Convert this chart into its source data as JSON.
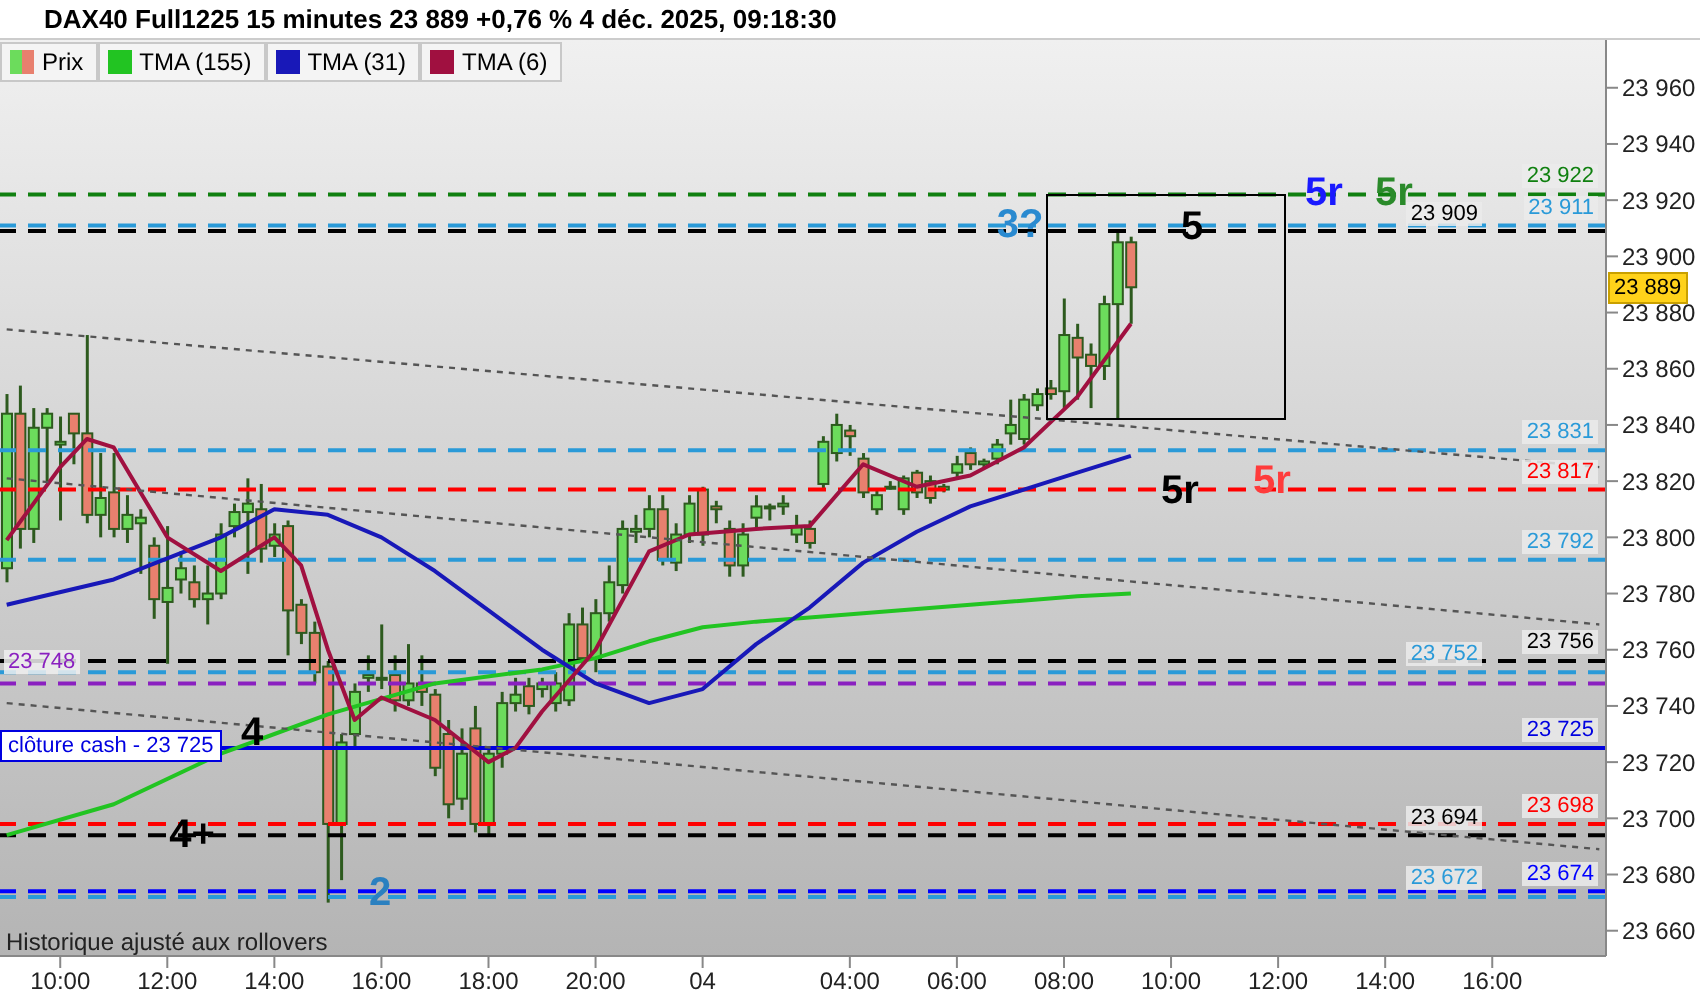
{
  "chart_data": {
    "type": "candlestick",
    "title": "DAX40 Full1225 15 minutes 23 889 +0,76 % 4 déc. 2025, 09:18:30",
    "categories": [
      null,
      null,
      null,
      null,
      "10:00",
      null,
      null,
      null,
      null,
      null,
      null,
      null,
      "12:00",
      null,
      null,
      null,
      null,
      null,
      null,
      null,
      "14:00",
      null,
      null,
      null,
      null,
      null,
      null,
      null,
      "16:00",
      null,
      null,
      null,
      null,
      null,
      null,
      null,
      "18:00",
      null,
      null,
      null,
      null,
      null,
      null,
      null,
      "20:00",
      null,
      null,
      null,
      null,
      null,
      null,
      null,
      "04",
      null,
      null,
      null,
      null,
      null,
      null,
      null,
      null,
      null,
      null,
      "04:00",
      null,
      null,
      null,
      null,
      null,
      null,
      null,
      "06:00",
      null,
      null,
      null,
      null,
      null,
      null,
      null,
      "08:00",
      null,
      null,
      null,
      null,
      null,
      null,
      null,
      "10:00",
      null,
      null,
      null,
      null,
      null,
      null,
      null,
      "12:00",
      null,
      null,
      null,
      null,
      null,
      null,
      null,
      "14:00",
      null,
      null,
      null,
      null,
      null,
      null,
      null,
      "16:00",
      null,
      null,
      null,
      null,
      null,
      null,
      null,
      null
    ],
    "series": [
      {
        "name": "Prix",
        "type": "candlestick",
        "colors": [
          "#6cdc5c",
          "#e8806e",
          "#6cdc5c",
          "#6cdc5c",
          "#6cdc5c",
          "#e8806e",
          "#e8806e",
          "#6cdc5c",
          "#e8806e",
          "#6cdc5c",
          "#6cdc5c",
          "#e8806e",
          "#6cdc5c",
          "#6cdc5c",
          "#e8806e",
          "#6cdc5c",
          "#6cdc5c",
          "#6cdc5c",
          "#6cdc5c",
          "#e8806e",
          "#6cdc5c",
          "#e8806e",
          "#e8806e",
          "#e8806e",
          "#e8806e",
          "#6cdc5c",
          "#6cdc5c",
          "#6cdc5c",
          "#6cdc5c",
          "#e8806e",
          "#6cdc5c",
          "#e8806e",
          "#e8806e",
          "#e8806e",
          "#6cdc5c",
          "#e8806e",
          "#6cdc5c",
          "#6cdc5c",
          "#6cdc5c",
          "#e8806e",
          "#6cdc5c",
          "#6cdc5c",
          "#6cdc5c",
          "#e8806e",
          "#6cdc5c",
          "#6cdc5c",
          "#6cdc5c",
          "#6cdc5c",
          "#6cdc5c",
          "#e8806e",
          "#6cdc5c",
          "#6cdc5c",
          "#e8806e",
          "#e8806e",
          "#e8806e",
          "#6cdc5c",
          "#6cdc5c",
          "#6cdc5c",
          "#6cdc5c",
          "#6cdc5c",
          "#e8806e",
          "#6cdc5c",
          "#6cdc5c",
          "#e8806e",
          "#e8806e",
          "#6cdc5c",
          "#6cdc5c",
          "#6cdc5c",
          "#e8806e",
          "#e8806e",
          "#6cdc5c",
          "#6cdc5c",
          "#e8806e",
          "#6cdc5c",
          "#6cdc5c",
          "#6cdc5c",
          "#6cdc5c",
          "#6cdc5c",
          "#e8806e",
          "#6cdc5c",
          "#e8806e",
          "#e8806e",
          "#6cdc5c",
          "#6cdc5c",
          "#e8806e",
          null,
          null,
          null,
          null,
          null,
          null,
          null,
          null,
          null,
          null,
          null,
          null,
          null,
          null,
          null,
          null,
          null,
          null,
          null,
          null,
          null,
          null,
          null,
          null,
          null,
          null,
          null,
          null,
          null,
          null,
          null,
          null,
          null,
          null,
          null
        ],
        "ohlc": [
          [
            23789,
            23851,
            23784,
            23844
          ],
          [
            23844,
            23854,
            23796,
            23803
          ],
          [
            23803,
            23846,
            23798,
            23839
          ],
          [
            23839,
            23846,
            23820,
            23844
          ],
          [
            23833,
            23843,
            23806,
            23834
          ],
          [
            23844,
            23844,
            23826,
            23837
          ],
          [
            23837,
            23872,
            23805,
            23808
          ],
          [
            23808,
            23830,
            23800,
            23814
          ],
          [
            23816,
            23830,
            23800,
            23803
          ],
          [
            23803,
            23815,
            23798,
            23808
          ],
          [
            23805,
            23810,
            23787,
            23807
          ],
          [
            23797,
            23800,
            23771,
            23778
          ],
          [
            23777,
            23804,
            23755,
            23782
          ],
          [
            23785,
            23795,
            23780,
            23789
          ],
          [
            23784,
            23790,
            23775,
            23778
          ],
          [
            23778,
            23790,
            23769,
            23780
          ],
          [
            23780,
            23805,
            23778,
            23801
          ],
          [
            23804,
            23812,
            23800,
            23809
          ],
          [
            23809,
            23821,
            23787,
            23812
          ],
          [
            23810,
            23819,
            23791,
            23796
          ],
          [
            23797,
            23805,
            23793,
            23801
          ],
          [
            23804,
            23806,
            23758,
            23774
          ],
          [
            23776,
            23778,
            23762,
            23766
          ],
          [
            23766,
            23770,
            23748,
            23752
          ],
          [
            23754,
            23756,
            23670,
            23698
          ],
          [
            23698,
            23730,
            23678,
            23727
          ],
          [
            23730,
            23748,
            23725,
            23745
          ],
          [
            23750,
            23758,
            23745,
            23751
          ],
          [
            23750,
            23769,
            23746,
            23750
          ],
          [
            23751,
            23758,
            23738,
            23742
          ],
          [
            23742,
            23762,
            23740,
            23748
          ],
          [
            23748,
            23758,
            23740,
            23745
          ],
          [
            23744,
            23746,
            23715,
            23718
          ],
          [
            23730,
            23735,
            23700,
            23705
          ],
          [
            23707,
            23732,
            23703,
            23723
          ],
          [
            23732,
            23740,
            23695,
            23698
          ],
          [
            23698,
            23725,
            23694,
            23723
          ],
          [
            23723,
            23745,
            23718,
            23741
          ],
          [
            23741,
            23750,
            23738,
            23744
          ],
          [
            23747,
            23750,
            23737,
            23740
          ],
          [
            23746,
            23750,
            23743,
            23748
          ],
          [
            23741,
            23752,
            23738,
            23748
          ],
          [
            23742,
            23773,
            23740,
            23769
          ],
          [
            23769,
            23775,
            23755,
            23757
          ],
          [
            23757,
            23778,
            23752,
            23773
          ],
          [
            23773,
            23790,
            23770,
            23784
          ],
          [
            23783,
            23806,
            23780,
            23803
          ],
          [
            23802,
            23808,
            23798,
            23803
          ],
          [
            23803,
            23815,
            23800,
            23810
          ],
          [
            23810,
            23815,
            23790,
            23792
          ],
          [
            23791,
            23805,
            23788,
            23801
          ],
          [
            23801,
            23815,
            23798,
            23812
          ],
          [
            23817,
            23818,
            23797,
            23801
          ],
          [
            23811,
            23813,
            23805,
            23810
          ],
          [
            23803,
            23806,
            23786,
            23790
          ],
          [
            23790,
            23805,
            23786,
            23801
          ],
          [
            23807,
            23815,
            23803,
            23811
          ],
          [
            23811,
            23812,
            23806,
            23811
          ],
          [
            23811,
            23815,
            23808,
            23812
          ],
          [
            23801,
            23808,
            23798,
            23804
          ],
          [
            23803,
            23806,
            23796,
            23798
          ],
          [
            23819,
            23836,
            23817,
            23834
          ],
          [
            23830,
            23844,
            23827,
            23840
          ],
          [
            23838,
            23840,
            23829,
            23836
          ],
          [
            23828,
            23830,
            23814,
            23816
          ],
          [
            23810,
            23817,
            23808,
            23815
          ],
          [
            23818,
            23820,
            23817,
            23818
          ],
          [
            23810,
            23822,
            23808,
            23821
          ],
          [
            23823,
            23824,
            23814,
            23816
          ],
          [
            23820,
            23822,
            23812,
            23814
          ],
          [
            23817,
            23819,
            23816,
            23818
          ],
          [
            23823,
            23829,
            23821,
            23826
          ],
          [
            23830,
            23832,
            23824,
            23826
          ],
          [
            23826,
            23828,
            23825,
            23827
          ],
          [
            23828,
            23835,
            23826,
            23833
          ],
          [
            23837,
            23849,
            23833,
            23840
          ],
          [
            23835,
            23851,
            23833,
            23849
          ],
          [
            23847,
            23853,
            23845,
            23851
          ],
          [
            23853,
            23856,
            23849,
            23851
          ],
          [
            23852,
            23885,
            23846,
            23872
          ],
          [
            23871,
            23876,
            23849,
            23864
          ],
          [
            23865,
            23869,
            23846,
            23861
          ],
          [
            23861,
            23886,
            23856,
            23883
          ],
          [
            23883,
            23909,
            23842,
            23905
          ],
          [
            23905,
            23907,
            23876,
            23889
          ],
          null,
          null,
          null,
          null,
          null,
          null,
          null,
          null,
          null,
          null,
          null,
          null,
          null,
          null,
          null,
          null,
          null,
          null,
          null,
          null,
          null,
          null,
          null,
          null,
          null,
          null,
          null,
          null,
          null,
          null,
          null,
          null,
          null,
          null,
          null
        ]
      },
      {
        "name": "TMA (155)",
        "type": "line",
        "color": "#22c422",
        "values": [
          23694,
          null,
          null,
          null,
          null,
          null,
          null,
          null,
          23705,
          null,
          null,
          null,
          null,
          null,
          null,
          null,
          23723,
          null,
          null,
          null,
          null,
          null,
          null,
          null,
          23737,
          null,
          null,
          null,
          null,
          null,
          null,
          null,
          23748,
          null,
          null,
          null,
          null,
          null,
          null,
          null,
          23753,
          null,
          null,
          null,
          23757,
          null,
          null,
          null,
          23763,
          null,
          null,
          null,
          23768,
          null,
          null,
          null,
          23770,
          null,
          null,
          null,
          null,
          null,
          null,
          null,
          23773,
          null,
          null,
          null,
          null,
          null,
          null,
          null,
          23776,
          null,
          null,
          null,
          null,
          null,
          null,
          null,
          23779,
          null,
          null,
          null,
          23780,
          null,
          null,
          null,
          null,
          null,
          null,
          null,
          null,
          null,
          null,
          null,
          null,
          null,
          null,
          null,
          null,
          null,
          null,
          null,
          null,
          null,
          null,
          null,
          null,
          null,
          null,
          null,
          null,
          null,
          null,
          null,
          null,
          null,
          null,
          null
        ]
      },
      {
        "name": "TMA (31)",
        "type": "line",
        "color": "#1818b8",
        "values": [
          23776,
          null,
          null,
          null,
          null,
          null,
          null,
          null,
          23785,
          null,
          null,
          null,
          null,
          null,
          null,
          null,
          23800,
          null,
          null,
          null,
          23810,
          null,
          null,
          null,
          23808,
          null,
          null,
          null,
          23800,
          null,
          null,
          null,
          23788,
          null,
          null,
          null,
          23774,
          null,
          null,
          null,
          23760,
          null,
          null,
          null,
          23748,
          null,
          null,
          null,
          23741,
          null,
          null,
          null,
          23746,
          null,
          null,
          null,
          23762,
          null,
          null,
          null,
          23775,
          null,
          null,
          null,
          23791,
          null,
          null,
          null,
          23802,
          null,
          null,
          null,
          23811,
          null,
          null,
          null,
          23817,
          null,
          null,
          null,
          23823,
          null,
          null,
          null,
          23829,
          null,
          null,
          null,
          null,
          null,
          null,
          null,
          null,
          null,
          null,
          null,
          null,
          null,
          null,
          null,
          null,
          null,
          null,
          null,
          null,
          null,
          null,
          null,
          null,
          null,
          null,
          null,
          null,
          null,
          null,
          null,
          null,
          null,
          null,
          null
        ]
      },
      {
        "name": "TMA (6)",
        "type": "line",
        "color": "#a01040",
        "values": [
          23799,
          null,
          null,
          null,
          23825,
          null,
          23835,
          null,
          23832,
          null,
          null,
          null,
          23800,
          null,
          null,
          null,
          23788,
          null,
          null,
          null,
          23800,
          null,
          23790,
          null,
          23760,
          null,
          23735,
          null,
          23743,
          null,
          null,
          null,
          23735,
          null,
          null,
          null,
          23720,
          null,
          23725,
          null,
          23738,
          null,
          null,
          null,
          23760,
          null,
          null,
          null,
          23795,
          null,
          null,
          23801,
          null,
          null,
          null,
          null,
          23803,
          null,
          null,
          null,
          23804,
          null,
          null,
          null,
          23826,
          null,
          null,
          null,
          23818,
          null,
          null,
          null,
          23822,
          null,
          null,
          null,
          23832,
          null,
          null,
          null,
          23850,
          null,
          null,
          null,
          23876,
          null,
          null,
          null,
          null,
          null,
          null,
          null,
          null,
          null,
          null,
          null,
          null,
          null,
          null,
          null,
          null,
          null,
          null,
          null,
          null,
          null,
          null,
          null,
          null,
          null,
          null,
          null,
          null,
          null,
          null,
          null,
          null,
          null,
          null,
          null
        ]
      },
      {
        "type": "line",
        "color": "#555555",
        "line_style": "dotted",
        "values": [
          23874,
          null,
          null,
          null,
          null,
          null,
          null,
          null,
          null,
          null,
          null,
          null,
          null,
          null,
          null,
          null,
          null,
          null,
          null,
          null,
          null,
          null,
          null,
          null,
          null,
          null,
          null,
          null,
          null,
          null,
          null,
          null,
          null,
          null,
          null,
          null,
          null,
          null,
          null,
          null,
          null,
          null,
          null,
          null,
          null,
          null,
          null,
          null,
          null,
          null,
          null,
          null,
          null,
          null,
          null,
          null,
          null,
          null,
          null,
          null,
          null,
          null,
          null,
          null,
          null,
          null,
          null,
          null,
          null,
          null,
          null,
          null,
          null,
          null,
          null,
          null,
          null,
          null,
          null,
          null,
          null,
          null,
          null,
          null,
          null,
          null,
          null,
          null,
          null,
          null,
          null,
          null,
          null,
          null,
          null,
          null,
          null,
          null,
          null,
          null,
          null,
          null,
          null,
          null,
          null,
          null,
          null,
          null,
          null,
          null,
          null,
          null,
          null,
          null,
          null,
          null,
          null,
          null,
          null,
          23825
        ]
      },
      {
        "type": "line",
        "color": "#555555",
        "line_style": "dotted",
        "values": [
          23821,
          null,
          null,
          null,
          null,
          null,
          null,
          null,
          null,
          null,
          null,
          null,
          null,
          null,
          null,
          null,
          null,
          null,
          null,
          null,
          null,
          null,
          null,
          null,
          null,
          null,
          null,
          null,
          null,
          null,
          null,
          null,
          null,
          null,
          null,
          null,
          null,
          null,
          null,
          null,
          null,
          null,
          null,
          null,
          null,
          null,
          null,
          null,
          null,
          null,
          null,
          null,
          null,
          null,
          null,
          null,
          null,
          null,
          null,
          null,
          null,
          null,
          null,
          null,
          null,
          null,
          null,
          null,
          null,
          null,
          null,
          null,
          null,
          null,
          null,
          null,
          null,
          null,
          null,
          null,
          null,
          null,
          null,
          null,
          null,
          null,
          null,
          null,
          null,
          null,
          null,
          null,
          null,
          null,
          null,
          null,
          null,
          null,
          null,
          null,
          null,
          null,
          null,
          null,
          null,
          null,
          null,
          null,
          null,
          null,
          null,
          null,
          null,
          null,
          null,
          null,
          null,
          null,
          null,
          23769
        ]
      },
      {
        "type": "line",
        "color": "#555555",
        "line_style": "dotted",
        "values": [
          23741,
          null,
          null,
          null,
          null,
          null,
          null,
          null,
          null,
          null,
          null,
          null,
          null,
          null,
          null,
          null,
          null,
          null,
          null,
          null,
          null,
          null,
          null,
          null,
          null,
          null,
          null,
          null,
          null,
          null,
          null,
          null,
          null,
          null,
          null,
          null,
          null,
          null,
          null,
          null,
          null,
          null,
          null,
          null,
          null,
          null,
          null,
          null,
          null,
          null,
          null,
          null,
          null,
          null,
          null,
          null,
          null,
          null,
          null,
          null,
          null,
          null,
          null,
          null,
          null,
          null,
          null,
          null,
          null,
          null,
          null,
          null,
          null,
          null,
          null,
          null,
          null,
          null,
          null,
          null,
          null,
          null,
          null,
          null,
          null,
          null,
          null,
          null,
          null,
          null,
          null,
          null,
          null,
          null,
          null,
          null,
          null,
          null,
          null,
          null,
          null,
          null,
          null,
          null,
          null,
          null,
          null,
          null,
          null,
          null,
          null,
          null,
          null,
          null,
          null,
          null,
          null,
          null,
          null,
          23689
        ]
      }
    ],
    "ylim": [
      23651,
      23977
    ],
    "yticks": [
      {
        "value": 23660,
        "label": "23 660"
      },
      {
        "value": 23680,
        "label": "23 680"
      },
      {
        "value": 23700,
        "label": "23 700"
      },
      {
        "value": 23720,
        "label": "23 720"
      },
      {
        "value": 23740,
        "label": "23 740"
      },
      {
        "value": 23760,
        "label": "23 760"
      },
      {
        "value": 23780,
        "label": "23 780"
      },
      {
        "value": 23800,
        "label": "23 800"
      },
      {
        "value": 23820,
        "label": "23 820"
      },
      {
        "value": 23840,
        "label": "23 840"
      },
      {
        "value": 23860,
        "label": "23 860"
      },
      {
        "value": 23880,
        "label": "23 880"
      },
      {
        "value": 23900,
        "label": "23 900"
      },
      {
        "value": 23920,
        "label": "23 920"
      },
      {
        "value": 23940,
        "label": "23 940"
      },
      {
        "value": 23960,
        "label": "23 960"
      }
    ],
    "ref_lines": [
      {
        "axis": "y",
        "value": 23922,
        "label": "23 922",
        "color": "#108010",
        "line_style": "dashed"
      },
      {
        "axis": "y",
        "value": 23911,
        "label": "23 911",
        "color": "#2a9ad8",
        "line_style": "dashed"
      },
      {
        "axis": "y",
        "value": 23909,
        "label": "23 909",
        "color": "#000000",
        "line_style": "dashed"
      },
      {
        "axis": "y",
        "value": 23831,
        "label": "23 831",
        "color": "#2a9ad8",
        "line_style": "dashed"
      },
      {
        "axis": "y",
        "value": 23817,
        "label": "23 817",
        "color": "#ff0000",
        "line_style": "dashed"
      },
      {
        "axis": "y",
        "value": 23792,
        "label": "23 792",
        "color": "#2a9ad8",
        "line_style": "dashed"
      },
      {
        "axis": "y",
        "value": 23756,
        "label": "23 756",
        "color": "#000000",
        "line_style": "dashed"
      },
      {
        "axis": "y",
        "value": 23752,
        "label": "23 752",
        "color": "#2a9ad8",
        "line_style": "dashed"
      },
      {
        "axis": "y",
        "value": 23748,
        "color": "#8a20c0",
        "line_style": "dashed"
      },
      {
        "axis": "y",
        "value": 23725,
        "label": "23 725",
        "color": "#0000e0",
        "line_style": "solid"
      },
      {
        "axis": "y",
        "value": 23698,
        "label": "23 698",
        "color": "#ff0000",
        "line_style": "dashed"
      },
      {
        "axis": "y",
        "value": 23694,
        "label": "23 694",
        "color": "#000000",
        "line_style": "dashed"
      },
      {
        "axis": "y",
        "value": 23674,
        "label": "23 674",
        "color": "#0000ff",
        "line_style": "dashed"
      },
      {
        "axis": "y",
        "value": 23672,
        "label": "23 672",
        "color": "#2a9ad8",
        "line_style": "dashed"
      }
    ],
    "annotations": [
      "Historique ajusté aux rollovers",
      {
        "text": "23 748",
        "y": 23748
      },
      {
        "text": "clôture cash -  23 725",
        "y": 23725
      },
      {
        "text": "23 889",
        "y": 23889
      },
      {
        "text": "4",
        "y": 23727
      },
      {
        "text": "4+",
        "y": 23694
      },
      {
        "text": "2",
        "y": 23673
      },
      {
        "text": "3?",
        "y": 23911
      },
      {
        "text": "5",
        "y": 23910
      },
      {
        "text": "5r",
        "y": 23922
      },
      {
        "text": "5r",
        "y": 23922
      },
      {
        "text": "5r",
        "y": 23816
      },
      {
        "text": "5r",
        "y": 23820
      }
    ],
    "legend": "top left"
  }
}
